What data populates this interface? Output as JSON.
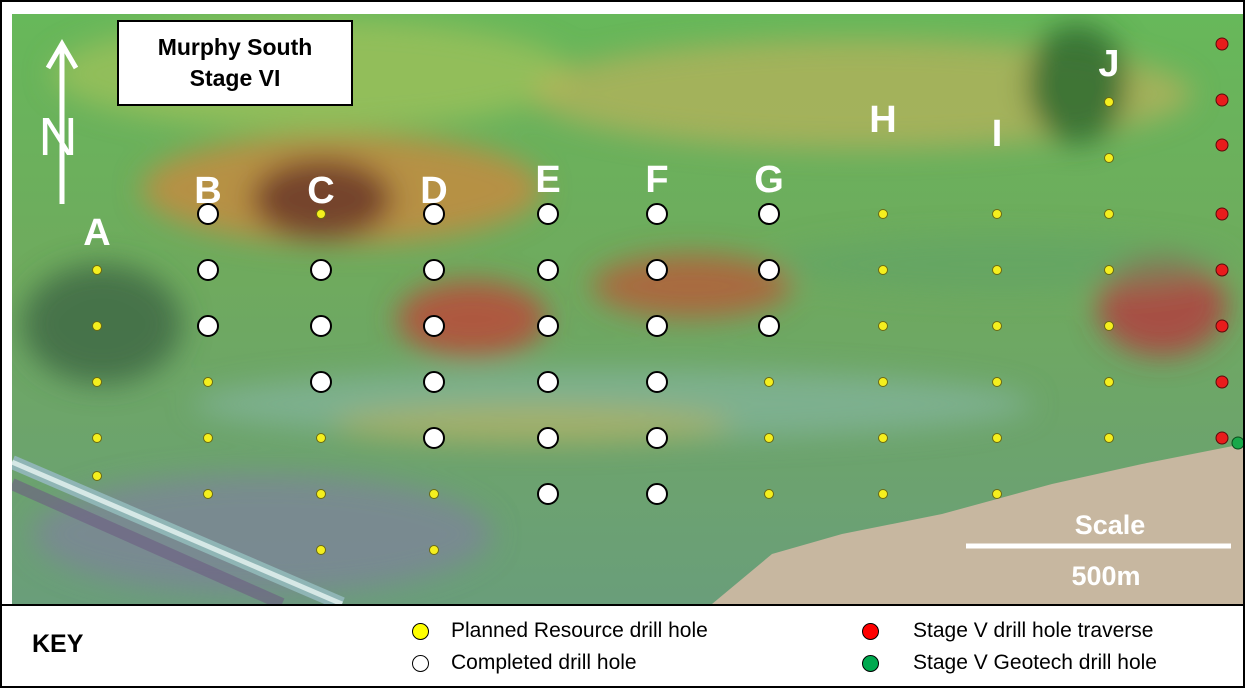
{
  "title_lines": [
    "Murphy South",
    "Stage VI"
  ],
  "north_label": "N",
  "scale": {
    "label": "Scale",
    "distance": "500m"
  },
  "traverse_labels": [
    "A",
    "B",
    "C",
    "D",
    "E",
    "F",
    "G",
    "H",
    "I",
    "J"
  ],
  "colors": {
    "planned": "#f5ef1e",
    "completed": "#ffffff",
    "stage_v_traverse": "#e81c1c",
    "stage_v_geotech": "#19a84a"
  },
  "key": {
    "title": "KEY",
    "items": [
      {
        "label": "Planned Resource drill hole",
        "color": "#ffff00"
      },
      {
        "label": "Completed drill hole",
        "color": "#ffffff"
      },
      {
        "label": "Stage V drill hole traverse",
        "color": "#ff0000"
      },
      {
        "label": "Stage V Geotech drill hole",
        "color": "#00a94f"
      }
    ]
  }
}
